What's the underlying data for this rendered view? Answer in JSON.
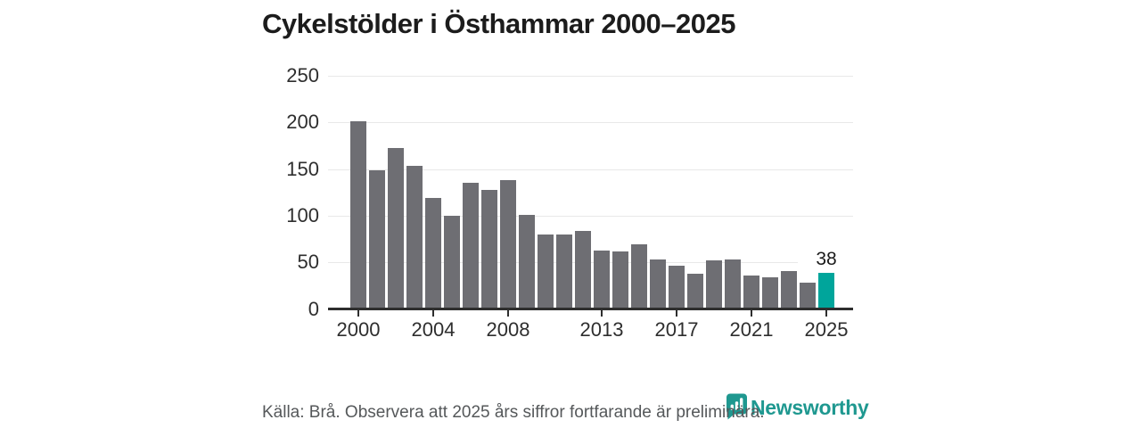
{
  "title": "Cykelstölder i Östhammar 2000–2025",
  "source_note": "Källa: Brå. Observera att 2025 års siffror fortfarande är preliminära.",
  "branding": {
    "wordmark": "Newsworthy",
    "icon": "bar-chart-speech-bubble-icon",
    "color": "#1f9890"
  },
  "colors": {
    "bar_default": "#6e6e73",
    "bar_highlight": "#00a59b",
    "axis": "#2e2e2e",
    "gridline": "#e8e8e8",
    "title_text": "#1c1c1c",
    "footer_text": "#55585a"
  },
  "chart_data": {
    "type": "bar",
    "title": "Cykelstölder i Östhammar 2000–2025",
    "xlabel": "",
    "ylabel": "",
    "categories": [
      2000,
      2001,
      2002,
      2003,
      2004,
      2005,
      2006,
      2007,
      2008,
      2009,
      2010,
      2011,
      2012,
      2013,
      2014,
      2015,
      2016,
      2017,
      2018,
      2019,
      2020,
      2021,
      2022,
      2023,
      2024,
      2025
    ],
    "values": [
      201,
      148,
      172,
      153,
      119,
      99,
      135,
      127,
      138,
      100,
      79,
      79,
      83,
      62,
      61,
      69,
      53,
      46,
      37,
      52,
      53,
      35,
      33,
      40,
      28,
      38
    ],
    "highlight": {
      "category": 2025,
      "value": 38,
      "label": "38"
    },
    "x_tick_labels": [
      "2000",
      "2004",
      "2008",
      "2013",
      "2017",
      "2021",
      "2025"
    ],
    "y_ticks": [
      0,
      50,
      100,
      150,
      200,
      250
    ],
    "ylim": [
      0,
      250
    ],
    "grid": "horizontal",
    "legend": "none"
  }
}
